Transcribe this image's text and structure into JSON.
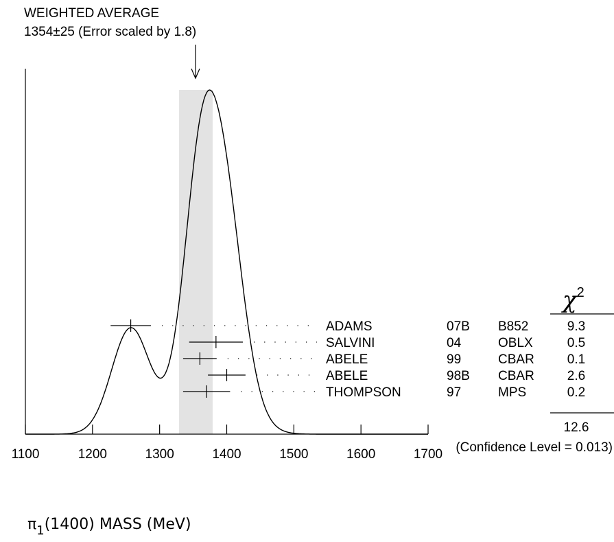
{
  "chart_data": {
    "type": "ideogram",
    "xlabel": {
      "prefix": "π",
      "sub": "1",
      "rest": "(1400) MASS (MeV)"
    },
    "xlim": [
      1100,
      1700
    ],
    "x_ticks": [
      "1100",
      "1200",
      "1300",
      "1400",
      "1500",
      "1600",
      "1700"
    ],
    "weighted_average": {
      "title": "WEIGHTED AVERAGE",
      "text": "1354±25 (Error scaled by 1.8)",
      "value": 1354,
      "error": 25,
      "scale_factor": 1.8
    },
    "chi2_header": {
      "symbol": "χ",
      "sup": "2"
    },
    "measurements": [
      {
        "author": "ADAMS",
        "year": "07B",
        "experiment": "B852",
        "chi2": "9.3",
        "value": 1257,
        "error": 30
      },
      {
        "author": "SALVINI",
        "year": "04",
        "experiment": "OBLX",
        "chi2": "0.5",
        "value": 1384,
        "error": 40
      },
      {
        "author": "ABELE",
        "year": "99",
        "experiment": "CBAR",
        "chi2": "0.1",
        "value": 1360,
        "error": 25
      },
      {
        "author": "ABELE",
        "year": "98B",
        "experiment": "CBAR",
        "chi2": "2.6",
        "value": 1400,
        "error": 28
      },
      {
        "author": "THOMPSON",
        "year": "97",
        "experiment": "MPS",
        "chi2": "0.2",
        "value": 1370,
        "error": 35
      }
    ],
    "chi2_total": "12.6",
    "confidence_level": "(Confidence Level = 0.013)"
  }
}
